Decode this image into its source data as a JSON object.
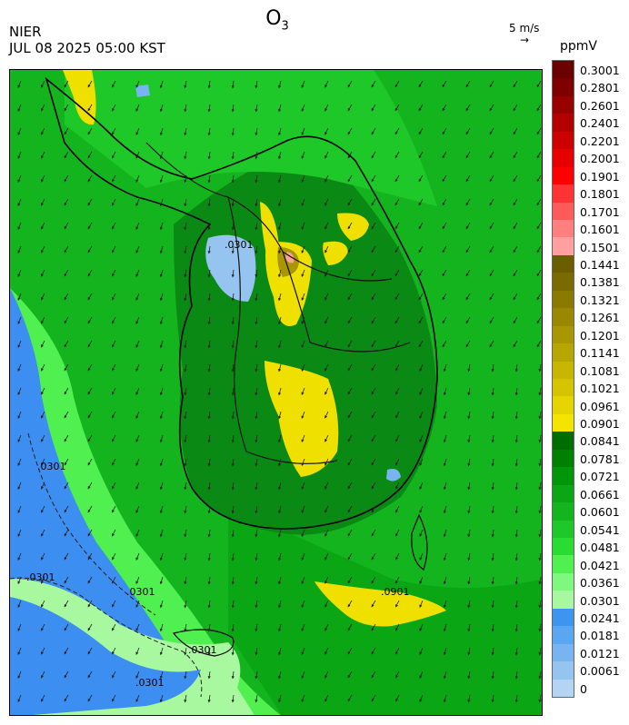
{
  "title": {
    "main": "O",
    "subscript": "3"
  },
  "agency": "NIER",
  "timestamp": "JUL 08 2025 05:00 KST",
  "wind_reference": {
    "label": "5 m/s",
    "arrow": "→"
  },
  "unit": "ppmV",
  "legend": {
    "labels": [
      "0.3001",
      "0.2801",
      "0.2601",
      "0.2401",
      "0.2201",
      "0.2001",
      "0.1901",
      "0.1801",
      "0.1701",
      "0.1601",
      "0.1501",
      "0.1441",
      "0.1381",
      "0.1321",
      "0.1261",
      "0.1201",
      "0.1141",
      "0.1081",
      "0.1021",
      "0.0961",
      "0.0901",
      "0.0841",
      "0.0781",
      "0.0721",
      "0.0661",
      "0.0601",
      "0.0541",
      "0.0481",
      "0.0421",
      "0.0361",
      "0.0301",
      "0.0241",
      "0.0181",
      "0.0121",
      "0.0061",
      "0"
    ],
    "colors": [
      "#6b0000",
      "#7f0000",
      "#990000",
      "#b30000",
      "#cc0000",
      "#e60000",
      "#ff0000",
      "#ff3333",
      "#ff5a5a",
      "#ff7f7f",
      "#ff9f9f",
      "#6b5e00",
      "#7a6b00",
      "#8a7a00",
      "#998800",
      "#a89700",
      "#b8a600",
      "#c7b500",
      "#d6c400",
      "#e6d400",
      "#f5e400",
      "#006d00",
      "#008000",
      "#00960a",
      "#0aa614",
      "#14b41e",
      "#1ec828",
      "#28dc32",
      "#50f050",
      "#7ef87e",
      "#a8f8a0",
      "#3c96f0",
      "#5aa6f0",
      "#78b4f0",
      "#96c4f0",
      "#b4d4f4"
    ]
  },
  "contour_labels": [
    ".0301",
    ".0301",
    ".0301",
    ".0301",
    ".0301",
    ".0901",
    ".0301"
  ],
  "colors": {
    "ocean_blue": "#3c8ef0",
    "land_green": "#14b41e",
    "dark_green": "#0a8a14",
    "yellow": "#f0e000",
    "olive": "#a89700",
    "pink": "#ff9f9f",
    "light_blue": "#96c4f0"
  }
}
